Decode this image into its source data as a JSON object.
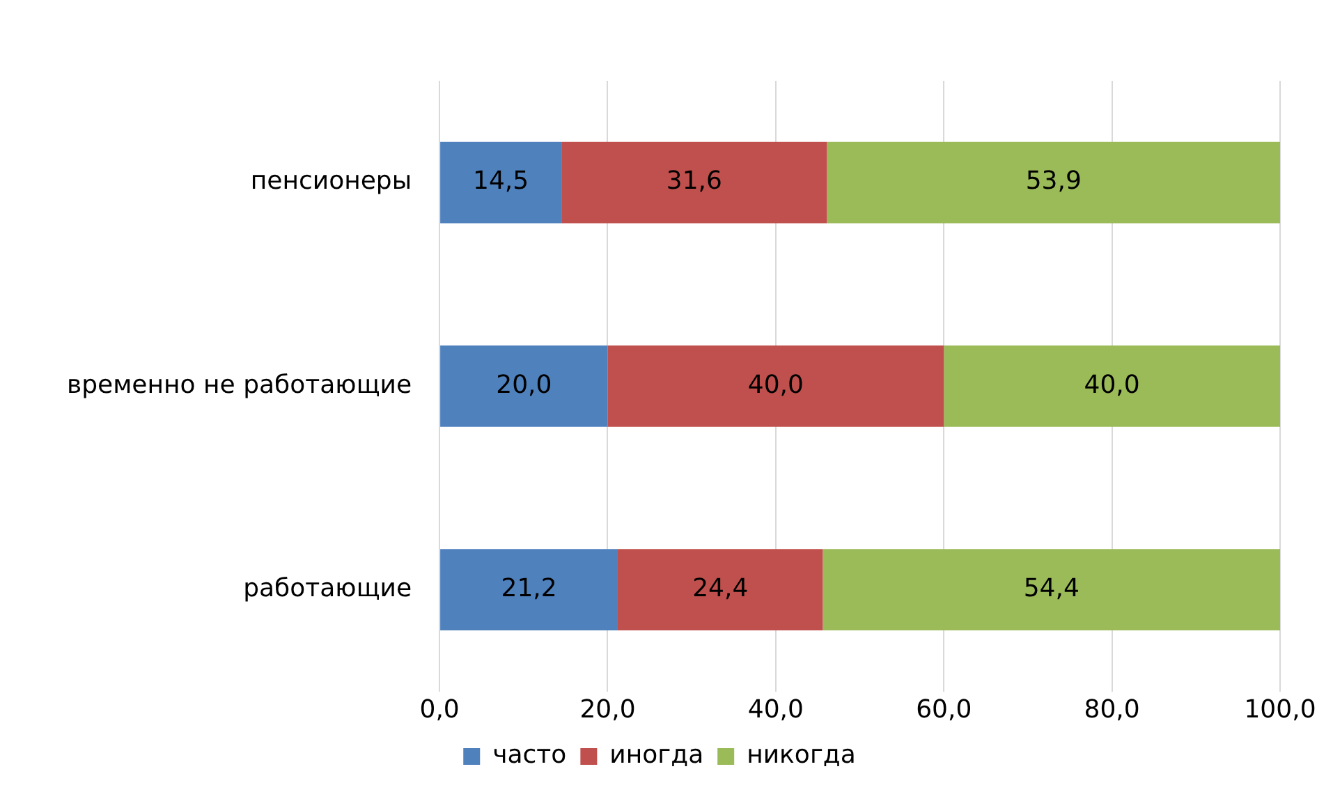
{
  "chart_data": {
    "type": "bar",
    "orientation": "horizontal",
    "stacked": true,
    "categories": [
      "пенсионеры",
      "временно не работающие",
      "работающие"
    ],
    "series": [
      {
        "name": "часто",
        "color": "#4f81bd",
        "values": [
          14.5,
          20.0,
          21.2
        ],
        "value_labels": [
          "14,5",
          "20,0",
          "21,2"
        ]
      },
      {
        "name": "иногда",
        "color": "#c0504d",
        "values": [
          31.6,
          40.0,
          24.4
        ],
        "value_labels": [
          "31,6",
          "40,0",
          "24,4"
        ]
      },
      {
        "name": "никогда",
        "color": "#9bbb59",
        "values": [
          53.9,
          40.0,
          54.4
        ],
        "value_labels": [
          "53,9",
          "40,0",
          "54,4"
        ]
      }
    ],
    "xlim": [
      0,
      100
    ],
    "xticks": [
      {
        "value": 0,
        "label": "0,0"
      },
      {
        "value": 20,
        "label": "20,0"
      },
      {
        "value": 40,
        "label": "40,0"
      },
      {
        "value": 60,
        "label": "60,0"
      },
      {
        "value": 80,
        "label": "80,0"
      },
      {
        "value": 100,
        "label": "100,0"
      }
    ],
    "grid": "x",
    "legend": "bottom"
  }
}
